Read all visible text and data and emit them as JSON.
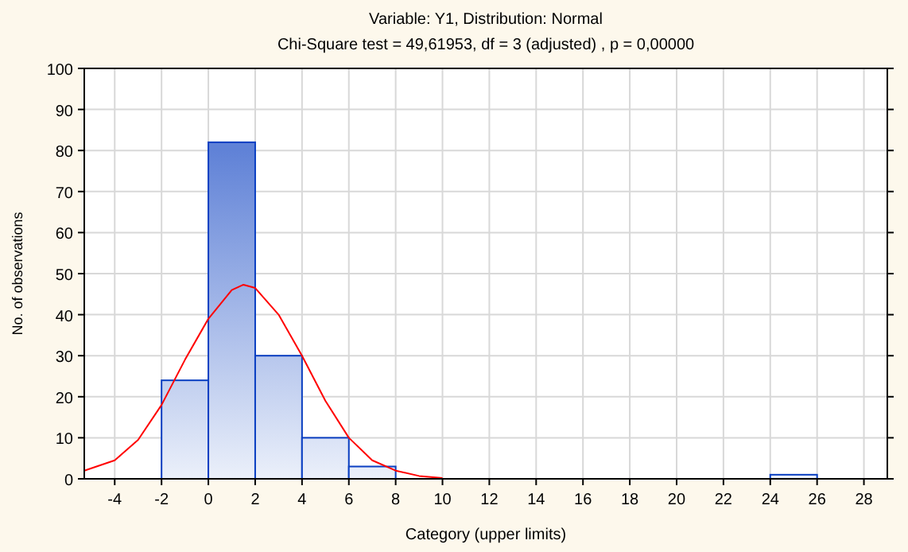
{
  "chart_data": {
    "type": "histogram",
    "title": "Variable: Y1, Distribution: Normal",
    "subtitle": "Chi-Square test = 49,61953, df = 3 (adjusted) , p = 0,00000",
    "xlabel": "Category (upper limits)",
    "ylabel": "No. of observations",
    "bins": [
      -2,
      0,
      2,
      4,
      6,
      8,
      10,
      12,
      14,
      16,
      18,
      20,
      22,
      24,
      26
    ],
    "values": [
      24,
      82,
      30,
      10,
      3,
      0,
      0,
      0,
      0,
      0,
      0,
      0,
      0,
      1
    ],
    "color": "#0a3fc2",
    "series": [
      {
        "type": "line",
        "color": "#ff0000",
        "x": [
          -5.3,
          -4,
          -3,
          -2,
          -1,
          0,
          1,
          1.5,
          2,
          3,
          4,
          5,
          6,
          7,
          8,
          9,
          10
        ],
        "values": [
          2,
          4.5,
          9.5,
          18,
          29,
          39,
          46,
          47.3,
          46.5,
          40,
          30,
          19,
          10,
          4.5,
          2,
          0.7,
          0.2
        ]
      }
    ],
    "xlim": [
      -5.3,
      29
    ],
    "xticks": [
      -4,
      -2,
      0,
      2,
      4,
      6,
      8,
      10,
      12,
      14,
      16,
      18,
      20,
      22,
      24,
      26,
      28
    ],
    "ylim": [
      0,
      100
    ],
    "yticks": [
      0,
      10,
      20,
      30,
      40,
      50,
      60,
      70,
      80,
      90,
      100
    ],
    "grid": true
  }
}
